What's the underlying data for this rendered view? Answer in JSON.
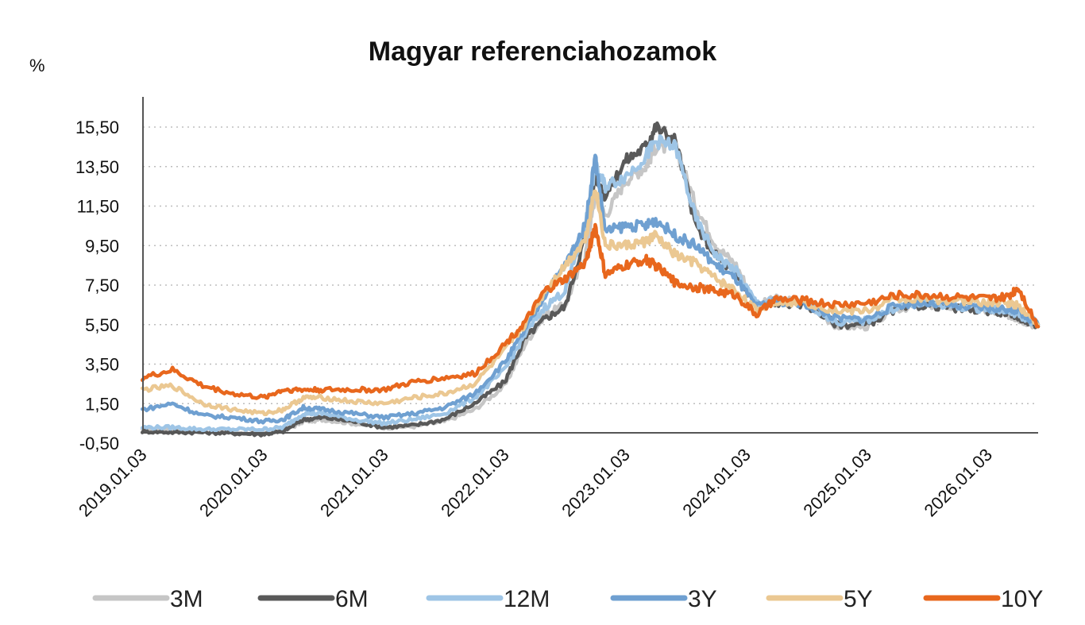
{
  "chart_data": {
    "type": "line",
    "title": "Magyar referenciahozamok",
    "ylabel": "%",
    "xlabel": "",
    "ylim": [
      -0.5,
      16.5
    ],
    "y_ticks": [
      "-0,50",
      "1,50",
      "3,50",
      "5,50",
      "7,50",
      "9,50",
      "11,50",
      "13,50",
      "15,50"
    ],
    "y_tick_values": [
      -0.5,
      1.5,
      3.5,
      5.5,
      7.5,
      9.5,
      11.5,
      13.5,
      15.5
    ],
    "x_ticks": [
      "2019.01.03",
      "2020.01.03",
      "2021.01.03",
      "2022.01.03",
      "2023.01.03",
      "2024.01.03",
      "2025.01.03",
      "2026.01.03"
    ],
    "x_range": [
      "2019.01.03",
      "2026.06.01"
    ],
    "grid": true,
    "legend_position": "bottom",
    "x": [
      "2019.01",
      "2019.04",
      "2019.07",
      "2019.10",
      "2020.01",
      "2020.03",
      "2020.05",
      "2020.07",
      "2020.10",
      "2021.01",
      "2021.04",
      "2021.07",
      "2021.10",
      "2022.01",
      "2022.03",
      "2022.05",
      "2022.07",
      "2022.09",
      "2022.10",
      "2022.11",
      "2023.01",
      "2023.03",
      "2023.04",
      "2023.06",
      "2023.08",
      "2023.10",
      "2023.12",
      "2024.02",
      "2024.04",
      "2024.07",
      "2024.10",
      "2025.01",
      "2025.04",
      "2025.07",
      "2025.10",
      "2026.01",
      "2026.03",
      "2026.04",
      "2026.06"
    ],
    "series": [
      {
        "name": "3M",
        "color": "#c6c6c6",
        "values": [
          0.15,
          0.15,
          0.1,
          0.05,
          0.0,
          0.1,
          0.6,
          0.7,
          0.5,
          0.3,
          0.35,
          0.6,
          1.2,
          2.4,
          4.5,
          6.0,
          6.5,
          9.0,
          12.0,
          11.0,
          12.8,
          13.5,
          14.5,
          14.5,
          11.5,
          9.5,
          8.5,
          6.5,
          6.8,
          6.6,
          5.4,
          5.4,
          6.3,
          6.5,
          6.4,
          6.2,
          6.0,
          5.8,
          5.4
        ]
      },
      {
        "name": "6M",
        "color": "#595959",
        "values": [
          0.1,
          0.05,
          0.05,
          0.0,
          -0.05,
          0.1,
          0.7,
          0.8,
          0.6,
          0.3,
          0.4,
          0.7,
          1.5,
          2.6,
          4.8,
          5.8,
          6.4,
          10.0,
          13.0,
          12.0,
          13.8,
          14.5,
          15.5,
          14.8,
          10.5,
          9.0,
          8.0,
          6.5,
          6.6,
          6.5,
          5.5,
          5.5,
          6.3,
          6.5,
          6.3,
          6.2,
          6.1,
          5.9,
          5.4
        ]
      },
      {
        "name": "12M",
        "color": "#9ec5e6",
        "values": [
          0.3,
          0.3,
          0.2,
          0.2,
          0.2,
          0.3,
          1.0,
          1.0,
          0.7,
          0.5,
          0.7,
          1.0,
          1.8,
          3.2,
          5.0,
          6.4,
          7.2,
          10.5,
          13.5,
          12.5,
          13.0,
          14.0,
          14.8,
          14.5,
          10.8,
          9.0,
          8.2,
          6.6,
          6.7,
          6.6,
          5.6,
          5.7,
          6.4,
          6.6,
          6.4,
          6.3,
          6.2,
          6.0,
          5.5
        ]
      },
      {
        "name": "3Y",
        "color": "#6fa0d1",
        "values": [
          1.2,
          1.5,
          0.9,
          0.8,
          0.6,
          0.7,
          1.3,
          1.2,
          1.0,
          0.8,
          1.0,
          1.3,
          2.0,
          3.6,
          5.2,
          7.0,
          8.5,
          10.5,
          14.0,
          10.2,
          10.5,
          10.5,
          10.8,
          10.0,
          9.5,
          8.5,
          7.8,
          6.4,
          6.7,
          6.5,
          5.8,
          5.8,
          6.5,
          6.6,
          6.4,
          6.3,
          6.3,
          6.2,
          5.5
        ]
      },
      {
        "name": "5Y",
        "color": "#ebc892",
        "values": [
          2.2,
          2.4,
          1.5,
          1.2,
          1.0,
          1.2,
          1.8,
          1.8,
          1.6,
          1.5,
          1.8,
          2.0,
          2.5,
          4.2,
          5.5,
          7.2,
          8.5,
          9.8,
          12.5,
          9.5,
          9.5,
          9.7,
          10.0,
          9.0,
          8.6,
          7.8,
          7.2,
          6.2,
          6.7,
          6.6,
          6.2,
          6.2,
          6.8,
          6.8,
          6.7,
          6.6,
          6.6,
          6.5,
          5.5
        ]
      },
      {
        "name": "10Y",
        "color": "#e8671d",
        "values": [
          2.8,
          3.2,
          2.4,
          2.0,
          1.8,
          2.2,
          2.2,
          2.2,
          2.2,
          2.2,
          2.6,
          2.8,
          3.0,
          4.5,
          5.6,
          7.2,
          7.8,
          8.6,
          10.5,
          8.0,
          8.5,
          8.8,
          8.5,
          7.6,
          7.4,
          7.2,
          7.0,
          6.0,
          6.8,
          6.7,
          6.5,
          6.6,
          7.0,
          7.0,
          6.9,
          6.8,
          6.9,
          7.4,
          5.4
        ]
      }
    ]
  }
}
